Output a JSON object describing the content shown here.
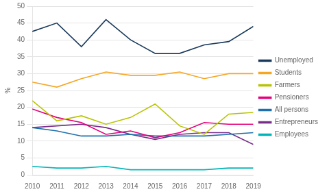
{
  "chart_data": {
    "type": "line",
    "x": [
      2010,
      2011,
      2012,
      2013,
      2014,
      2015,
      2016,
      2017,
      2018,
      2019
    ],
    "xlim": [
      2010,
      2019
    ],
    "xticks": [
      2010,
      2011,
      2012,
      2013,
      2014,
      2015,
      2016,
      2017,
      2018,
      2019
    ],
    "series": [
      {
        "name": "Unemployed",
        "color": "#1a3a5c",
        "values": [
          42.5,
          45.0,
          38.0,
          46.0,
          40.0,
          36.0,
          36.0,
          38.5,
          39.5,
          44.0
        ]
      },
      {
        "name": "Students",
        "color": "#f5a623",
        "values": [
          27.5,
          26.0,
          28.5,
          30.5,
          29.5,
          29.5,
          30.5,
          28.5,
          30.0,
          30.0
        ]
      },
      {
        "name": "Farmers",
        "color": "#b8c400",
        "values": [
          22.0,
          16.0,
          17.5,
          15.0,
          17.0,
          21.0,
          14.5,
          12.0,
          18.0,
          18.5
        ]
      },
      {
        "name": "Pensioners",
        "color": "#e5007d",
        "values": [
          19.5,
          17.0,
          15.5,
          12.0,
          13.0,
          11.0,
          12.5,
          15.5,
          15.0,
          15.0
        ]
      },
      {
        "name": "All persons",
        "color": "#1e6fad",
        "values": [
          14.0,
          13.0,
          11.5,
          11.5,
          12.0,
          11.5,
          11.5,
          11.5,
          12.0,
          12.5
        ]
      },
      {
        "name": "Entrepreneurs",
        "color": "#7b2d8b",
        "values": [
          14.0,
          14.5,
          15.0,
          14.0,
          12.0,
          10.5,
          12.0,
          12.5,
          12.5,
          9.0
        ]
      },
      {
        "name": "Employees",
        "color": "#00b5b8",
        "values": [
          2.5,
          2.0,
          2.0,
          2.5,
          1.5,
          1.5,
          1.5,
          1.5,
          2.0,
          2.0
        ]
      }
    ],
    "ylabel": "%",
    "ylim": [
      0,
      50
    ],
    "yticks": [
      0,
      5,
      10,
      15,
      20,
      25,
      30,
      35,
      40,
      45,
      50
    ],
    "grid": "y",
    "legend": "right"
  }
}
